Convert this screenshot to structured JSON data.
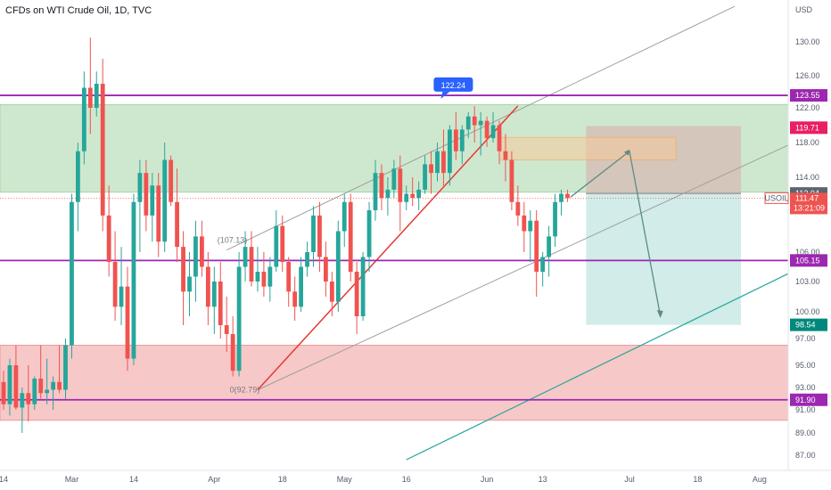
{
  "header": {
    "title": "CFDs on WTI Crude Oil, 1D, TVC"
  },
  "axis": {
    "currency": "USD"
  },
  "colors": {
    "up": "#26a69a",
    "down": "#ef5350",
    "purple": "#9c27b0",
    "green_zone": "#a5d6a7",
    "red_zone": "#ef9a9a",
    "target_zone": "#b2dfdb",
    "stop_zone": "#d7b8b0",
    "trend_green": "#26a69a",
    "channel": "#9e9e9e",
    "price_tag": "#ef5350",
    "blue_tag": "#2962ff",
    "teal_tag": "#00897b"
  },
  "chart_data": {
    "type": "candlestick",
    "title": "CFDs on WTI Crude Oil, 1D, TVC",
    "symbol": "USOIL",
    "ylim": [
      85.5,
      132
    ],
    "y_ticks": [
      87.0,
      89.0,
      91.0,
      93.0,
      95.0,
      97.0,
      100.0,
      103.0,
      106.0,
      110.0,
      114.0,
      118.0,
      122.0,
      126.0,
      130.0
    ],
    "x_ticks": [
      {
        "label": "14",
        "i": 0
      },
      {
        "label": "Mar",
        "i": 11
      },
      {
        "label": "14",
        "i": 21
      },
      {
        "label": "Apr",
        "i": 34
      },
      {
        "label": "18",
        "i": 45
      },
      {
        "label": "May",
        "i": 55
      },
      {
        "label": "16",
        "i": 65
      },
      {
        "label": "Jun",
        "i": 78
      },
      {
        "label": "13",
        "i": 87
      },
      {
        "label": "Jul",
        "i": 101
      },
      {
        "label": "18",
        "i": 112
      },
      {
        "label": "Aug",
        "i": 122
      }
    ],
    "candles": [
      [
        93.5,
        94.5,
        91,
        91.5
      ],
      [
        91.5,
        95.5,
        90.5,
        95
      ],
      [
        95,
        96.5,
        91,
        91.2
      ],
      [
        91.2,
        93,
        89,
        92.5
      ],
      [
        92.5,
        95,
        90,
        91.5
      ],
      [
        91.5,
        94,
        91,
        93.8
      ],
      [
        93.8,
        96.5,
        92,
        92.5
      ],
      [
        92.5,
        95.5,
        91.5,
        92.8
      ],
      [
        92.8,
        94,
        91,
        93.5
      ],
      [
        93.5,
        96.5,
        92.5,
        92.8
      ],
      [
        92.8,
        97,
        92,
        96.5
      ],
      [
        96.5,
        112,
        95.5,
        111
      ],
      [
        111,
        118,
        108,
        117
      ],
      [
        117,
        126.5,
        115.5,
        124.5
      ],
      [
        124.5,
        130.5,
        119,
        122
      ],
      [
        122,
        126.5,
        121,
        125
      ],
      [
        125,
        128,
        108,
        109.5
      ],
      [
        109.5,
        113,
        103.5,
        105
      ],
      [
        105,
        108,
        99,
        100.5
      ],
      [
        100.5,
        106.5,
        98.5,
        102.5
      ],
      [
        102.5,
        104.5,
        94.5,
        95.5
      ],
      [
        95.5,
        112,
        95,
        111
      ],
      [
        111,
        116,
        106,
        114.5
      ],
      [
        114.5,
        116,
        108,
        109.5
      ],
      [
        109.5,
        114.5,
        107,
        113
      ],
      [
        113,
        114.5,
        105.5,
        107
      ],
      [
        107,
        118,
        106,
        116
      ],
      [
        116,
        116.5,
        110.5,
        111
      ],
      [
        111,
        115,
        105,
        106.5
      ],
      [
        106.5,
        108,
        98.5,
        102
      ],
      [
        102,
        106,
        99.5,
        103.5
      ],
      [
        103.5,
        109,
        101,
        107.5
      ],
      [
        107.5,
        109,
        103.5,
        104.5
      ],
      [
        104.5,
        106,
        98.5,
        100.5
      ],
      [
        100.5,
        104.5,
        97.5,
        103
      ],
      [
        103,
        105,
        97,
        98.5
      ],
      [
        98.5,
        101.5,
        96,
        97.5
      ],
      [
        97.5,
        99.5,
        94,
        94.5
      ],
      [
        94.5,
        106,
        94,
        104.5
      ],
      [
        104.5,
        108,
        103,
        106.5
      ],
      [
        106.5,
        108,
        102.5,
        103
      ],
      [
        103,
        106.5,
        102,
        104
      ],
      [
        104,
        106,
        101.5,
        102.5
      ],
      [
        102.5,
        105.5,
        101,
        104.5
      ],
      [
        104.5,
        110,
        104,
        108.5
      ],
      [
        108.5,
        109.5,
        104,
        105
      ],
      [
        105,
        105.5,
        100.5,
        102
      ],
      [
        102,
        103.5,
        99,
        100.5
      ],
      [
        100.5,
        105.5,
        100,
        104.5
      ],
      [
        104.5,
        107,
        103.5,
        106
      ],
      [
        106,
        110.5,
        104.5,
        109.5
      ],
      [
        109.5,
        111,
        104,
        105.5
      ],
      [
        105.5,
        107,
        101.5,
        103
      ],
      [
        103,
        104,
        99.5,
        101
      ],
      [
        101,
        109,
        100,
        108
      ],
      [
        108,
        112,
        106.5,
        111
      ],
      [
        111,
        112,
        103,
        104
      ],
      [
        104,
        105,
        97.5,
        99.5
      ],
      [
        99.5,
        106,
        99,
        105.5
      ],
      [
        105.5,
        111,
        104,
        110
      ],
      [
        110,
        116,
        109,
        114.5
      ],
      [
        114.5,
        115.5,
        110,
        111.5
      ],
      [
        111.5,
        114,
        109.5,
        112.5
      ],
      [
        112.5,
        116,
        111.5,
        115
      ],
      [
        115,
        116.5,
        108,
        111
      ],
      [
        111,
        113,
        110,
        112
      ],
      [
        112,
        114,
        110.5,
        111.5
      ],
      [
        111.5,
        113.5,
        110,
        112.5
      ],
      [
        112.5,
        116.5,
        112,
        115.5
      ],
      [
        115.5,
        117,
        112,
        114.5
      ],
      [
        114.5,
        118,
        113.5,
        117
      ],
      [
        117,
        119.5,
        113,
        114.5
      ],
      [
        114.5,
        120,
        113,
        119.5
      ],
      [
        119.5,
        121.5,
        116,
        117
      ],
      [
        117,
        120,
        115.5,
        119.5
      ],
      [
        119.5,
        121.5,
        118.5,
        121
      ],
      [
        121,
        122.2,
        118,
        120
      ],
      [
        120,
        121.5,
        116.5,
        120.5
      ],
      [
        120.5,
        121,
        117.5,
        118.5
      ],
      [
        118.5,
        121.5,
        118,
        120
      ],
      [
        120,
        120.5,
        115.5,
        117
      ],
      [
        117,
        119,
        113.5,
        116
      ],
      [
        116,
        117,
        110,
        111
      ],
      [
        111,
        113,
        108.5,
        109.5
      ],
      [
        109.5,
        111,
        106,
        108
      ],
      [
        108,
        110,
        105,
        109
      ],
      [
        109,
        110,
        101.5,
        104
      ],
      [
        104,
        106,
        102.5,
        105.5
      ],
      [
        105.5,
        108.5,
        103.5,
        107.5
      ],
      [
        107.5,
        112,
        106.5,
        111
      ],
      [
        111,
        112.5,
        109.5,
        112
      ],
      [
        112,
        112.5,
        111,
        111.47
      ]
    ],
    "horizontal_levels": [
      {
        "label": "123.55",
        "y": 123.55,
        "color": "#9c27b0"
      },
      {
        "label": "105.15",
        "y": 105.15,
        "color": "#9c27b0"
      },
      {
        "label": "91.90",
        "y": 91.9,
        "color": "#9c27b0"
      }
    ],
    "zones": [
      {
        "kind": "supply",
        "y1": 122.4,
        "y2": 112.2,
        "color": "#a5d6a7"
      },
      {
        "kind": "demand",
        "y1": 96.5,
        "y2": 90.1,
        "color": "#ef9a9a"
      }
    ],
    "price_labels": [
      {
        "text": "119.71",
        "y": 119.71,
        "color": "#e91e63"
      },
      {
        "text": "112.04",
        "y": 112.04,
        "color": "#5d6470"
      },
      {
        "text": "111.47",
        "y": 111.47,
        "color": "#ef5350"
      },
      {
        "text": "13:21:09",
        "y": 110.9,
        "color": "#ef5350"
      },
      {
        "text": "98.54",
        "y": 98.54,
        "color": "#00897b"
      }
    ],
    "symbol_tag": "USOIL",
    "annotations": [
      {
        "text": "122.24",
        "y": 122.24,
        "i": 72,
        "kind": "high"
      },
      {
        "text": "(107.13)",
        "y": 107.13,
        "kind": "fib"
      },
      {
        "text": "0(92.79)",
        "y": 92.79,
        "kind": "fib"
      }
    ]
  }
}
